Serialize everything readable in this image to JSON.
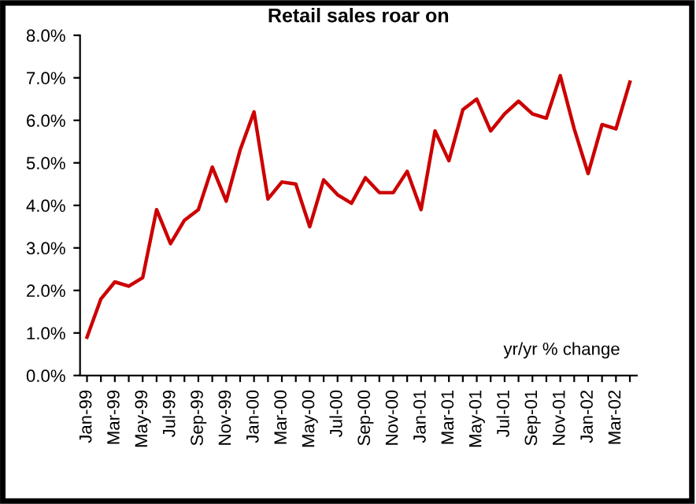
{
  "chart_data": {
    "type": "line",
    "title": "Retail sales roar on",
    "categories": [
      "Jan-99",
      null,
      "Mar-99",
      null,
      "May-99",
      null,
      "Jul-99",
      null,
      "Sep-99",
      null,
      "Nov-99",
      null,
      "Jan-00",
      null,
      "Mar-00",
      null,
      "May-00",
      null,
      "Jul-00",
      null,
      "Sep-00",
      null,
      "Nov-00",
      null,
      "Jan-01",
      null,
      "Mar-01",
      null,
      "May-01",
      null,
      "Jul-01",
      null,
      "Sep-01",
      null,
      "Nov-01",
      null,
      "Jan-02",
      null,
      "Mar-02",
      null
    ],
    "series": [
      {
        "color": "#cc0000",
        "values": [
          0.9,
          1.8,
          2.2,
          2.1,
          2.3,
          3.9,
          3.1,
          3.65,
          3.9,
          4.9,
          4.1,
          5.3,
          6.2,
          4.15,
          4.55,
          4.5,
          3.5,
          4.6,
          4.25,
          4.05,
          4.65,
          4.3,
          4.3,
          4.8,
          3.9,
          5.75,
          5.05,
          6.25,
          6.5,
          5.75,
          6.15,
          6.45,
          6.15,
          6.05,
          7.05,
          5.8,
          4.75,
          5.9,
          5.8,
          6.9
        ]
      }
    ],
    "ylim": [
      0,
      8
    ],
    "yticks": [
      {
        "value": 0,
        "label": "0.0%"
      },
      {
        "value": 1,
        "label": "1.0%"
      },
      {
        "value": 2,
        "label": "2.0%"
      },
      {
        "value": 3,
        "label": "3.0%"
      },
      {
        "value": 4,
        "label": "4.0%"
      },
      {
        "value": 5,
        "label": "5.0%"
      },
      {
        "value": 6,
        "label": "6.0%"
      },
      {
        "value": 7,
        "label": "7.0%"
      },
      {
        "value": 8,
        "label": "8.0%"
      }
    ],
    "grid": false,
    "legend": false,
    "marker": "none",
    "line_style": "solid",
    "annotations": [
      "yr/yr % change"
    ]
  }
}
